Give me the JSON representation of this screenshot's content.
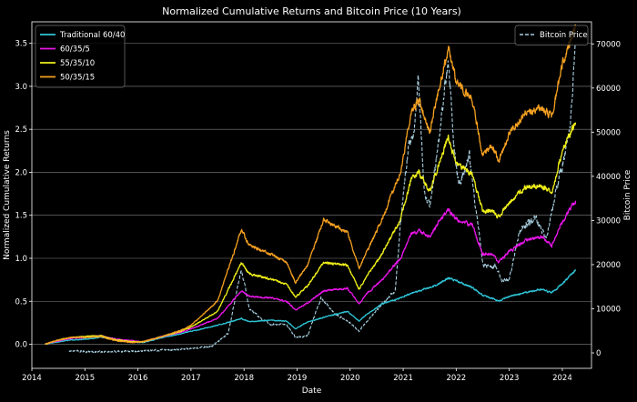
{
  "chart_data": {
    "type": "line",
    "title": "Normalized Cumulative Returns and Bitcoin Price (10 Years)",
    "xlabel": "Date",
    "ylabel_left": "Normalized Cumulative Returns",
    "ylabel_right": "Bitcoin Price",
    "xlim": [
      2014.0,
      2024.55
    ],
    "ylim_left": [
      -0.28,
      3.75
    ],
    "ylim_right": [
      -3500,
      75000
    ],
    "x_ticks": [
      "2014",
      "2015",
      "2016",
      "2017",
      "2018",
      "2019",
      "2020",
      "2021",
      "2022",
      "2023",
      "2024"
    ],
    "y_ticks_left": [
      "0.0",
      "0.5",
      "1.0",
      "1.5",
      "2.0",
      "2.5",
      "3.0",
      "3.5"
    ],
    "y_ticks_right": [
      "0",
      "10000",
      "20000",
      "30000",
      "40000",
      "50000",
      "60000",
      "70000"
    ],
    "grid": "horizontal",
    "legend_left_position": "top-left",
    "legend_right_position": "top-right",
    "series": [
      {
        "name": "Traditional 60/40",
        "axis": "left",
        "color": "#2ec4d6",
        "points": [
          [
            2014.25,
            0.0
          ],
          [
            2014.5,
            0.03
          ],
          [
            2014.75,
            0.05
          ],
          [
            2015.0,
            0.06
          ],
          [
            2015.3,
            0.08
          ],
          [
            2015.6,
            0.05
          ],
          [
            2015.9,
            0.03
          ],
          [
            2016.1,
            0.02
          ],
          [
            2016.4,
            0.07
          ],
          [
            2016.8,
            0.12
          ],
          [
            2017.0,
            0.15
          ],
          [
            2017.5,
            0.22
          ],
          [
            2017.95,
            0.3
          ],
          [
            2018.1,
            0.26
          ],
          [
            2018.5,
            0.28
          ],
          [
            2018.8,
            0.27
          ],
          [
            2018.97,
            0.18
          ],
          [
            2019.2,
            0.26
          ],
          [
            2019.6,
            0.33
          ],
          [
            2019.95,
            0.38
          ],
          [
            2020.17,
            0.27
          ],
          [
            2020.3,
            0.34
          ],
          [
            2020.6,
            0.47
          ],
          [
            2020.95,
            0.54
          ],
          [
            2021.3,
            0.62
          ],
          [
            2021.6,
            0.68
          ],
          [
            2021.85,
            0.77
          ],
          [
            2022.0,
            0.74
          ],
          [
            2022.3,
            0.66
          ],
          [
            2022.5,
            0.57
          ],
          [
            2022.7,
            0.53
          ],
          [
            2022.8,
            0.5
          ],
          [
            2023.0,
            0.56
          ],
          [
            2023.3,
            0.6
          ],
          [
            2023.6,
            0.64
          ],
          [
            2023.8,
            0.6
          ],
          [
            2024.0,
            0.7
          ],
          [
            2024.25,
            0.87
          ]
        ]
      },
      {
        "name": "60/35/5",
        "axis": "left",
        "color": "#e815e8",
        "points": [
          [
            2014.25,
            0.0
          ],
          [
            2014.5,
            0.04
          ],
          [
            2014.75,
            0.07
          ],
          [
            2015.0,
            0.08
          ],
          [
            2015.3,
            0.1
          ],
          [
            2015.6,
            0.06
          ],
          [
            2015.9,
            0.04
          ],
          [
            2016.1,
            0.03
          ],
          [
            2016.4,
            0.08
          ],
          [
            2016.8,
            0.14
          ],
          [
            2017.0,
            0.18
          ],
          [
            2017.5,
            0.3
          ],
          [
            2017.95,
            0.62
          ],
          [
            2018.1,
            0.56
          ],
          [
            2018.5,
            0.54
          ],
          [
            2018.8,
            0.5
          ],
          [
            2018.97,
            0.4
          ],
          [
            2019.2,
            0.48
          ],
          [
            2019.5,
            0.62
          ],
          [
            2019.95,
            0.65
          ],
          [
            2020.17,
            0.47
          ],
          [
            2020.3,
            0.58
          ],
          [
            2020.6,
            0.75
          ],
          [
            2020.95,
            1.0
          ],
          [
            2021.15,
            1.28
          ],
          [
            2021.3,
            1.32
          ],
          [
            2021.5,
            1.25
          ],
          [
            2021.65,
            1.4
          ],
          [
            2021.85,
            1.57
          ],
          [
            2022.0,
            1.45
          ],
          [
            2022.3,
            1.38
          ],
          [
            2022.5,
            1.05
          ],
          [
            2022.7,
            1.05
          ],
          [
            2022.8,
            0.95
          ],
          [
            2023.0,
            1.08
          ],
          [
            2023.3,
            1.2
          ],
          [
            2023.6,
            1.25
          ],
          [
            2023.8,
            1.15
          ],
          [
            2024.0,
            1.42
          ],
          [
            2024.25,
            1.67
          ]
        ]
      },
      {
        "name": "55/35/10",
        "axis": "left",
        "color": "#f0f01a",
        "points": [
          [
            2014.25,
            0.0
          ],
          [
            2014.5,
            0.05
          ],
          [
            2014.75,
            0.08
          ],
          [
            2015.0,
            0.09
          ],
          [
            2015.3,
            0.1
          ],
          [
            2015.6,
            0.05
          ],
          [
            2015.9,
            0.03
          ],
          [
            2016.1,
            0.03
          ],
          [
            2016.4,
            0.08
          ],
          [
            2016.8,
            0.15
          ],
          [
            2017.0,
            0.2
          ],
          [
            2017.5,
            0.38
          ],
          [
            2017.95,
            0.95
          ],
          [
            2018.1,
            0.82
          ],
          [
            2018.5,
            0.76
          ],
          [
            2018.8,
            0.7
          ],
          [
            2018.97,
            0.55
          ],
          [
            2019.2,
            0.68
          ],
          [
            2019.5,
            0.95
          ],
          [
            2019.95,
            0.92
          ],
          [
            2020.17,
            0.64
          ],
          [
            2020.3,
            0.78
          ],
          [
            2020.6,
            1.05
          ],
          [
            2020.95,
            1.45
          ],
          [
            2021.15,
            1.92
          ],
          [
            2021.3,
            2.0
          ],
          [
            2021.5,
            1.78
          ],
          [
            2021.65,
            2.05
          ],
          [
            2021.85,
            2.4
          ],
          [
            2022.0,
            2.1
          ],
          [
            2022.3,
            1.98
          ],
          [
            2022.5,
            1.55
          ],
          [
            2022.7,
            1.55
          ],
          [
            2022.8,
            1.48
          ],
          [
            2023.0,
            1.65
          ],
          [
            2023.3,
            1.82
          ],
          [
            2023.6,
            1.85
          ],
          [
            2023.8,
            1.75
          ],
          [
            2024.0,
            2.25
          ],
          [
            2024.25,
            2.58
          ]
        ]
      },
      {
        "name": "50/35/15",
        "axis": "left",
        "color": "#f5a020",
        "points": [
          [
            2014.25,
            0.0
          ],
          [
            2014.5,
            0.05
          ],
          [
            2014.75,
            0.08
          ],
          [
            2015.0,
            0.08
          ],
          [
            2015.3,
            0.09
          ],
          [
            2015.6,
            0.04
          ],
          [
            2015.9,
            0.02
          ],
          [
            2016.1,
            0.03
          ],
          [
            2016.4,
            0.08
          ],
          [
            2016.8,
            0.16
          ],
          [
            2017.0,
            0.22
          ],
          [
            2017.5,
            0.5
          ],
          [
            2017.95,
            1.33
          ],
          [
            2018.1,
            1.15
          ],
          [
            2018.5,
            1.05
          ],
          [
            2018.8,
            0.95
          ],
          [
            2018.97,
            0.72
          ],
          [
            2019.2,
            0.92
          ],
          [
            2019.5,
            1.45
          ],
          [
            2019.95,
            1.3
          ],
          [
            2020.17,
            0.88
          ],
          [
            2020.3,
            1.05
          ],
          [
            2020.6,
            1.45
          ],
          [
            2020.95,
            2.0
          ],
          [
            2021.15,
            2.7
          ],
          [
            2021.3,
            2.85
          ],
          [
            2021.5,
            2.45
          ],
          [
            2021.65,
            2.9
          ],
          [
            2021.85,
            3.45
          ],
          [
            2022.0,
            3.05
          ],
          [
            2022.3,
            2.85
          ],
          [
            2022.5,
            2.2
          ],
          [
            2022.7,
            2.3
          ],
          [
            2022.8,
            2.12
          ],
          [
            2023.0,
            2.45
          ],
          [
            2023.3,
            2.7
          ],
          [
            2023.6,
            2.75
          ],
          [
            2023.8,
            2.65
          ],
          [
            2024.0,
            3.25
          ],
          [
            2024.25,
            3.72
          ]
        ]
      },
      {
        "name": "Bitcoin Price",
        "axis": "right",
        "color": "#a8d0e0",
        "dashed": true,
        "points": [
          [
            2014.7,
            500
          ],
          [
            2015.0,
            300
          ],
          [
            2015.5,
            250
          ],
          [
            2016.0,
            430
          ],
          [
            2016.5,
            650
          ],
          [
            2017.0,
            1000
          ],
          [
            2017.4,
            1500
          ],
          [
            2017.7,
            4500
          ],
          [
            2017.95,
            19000
          ],
          [
            2018.1,
            10000
          ],
          [
            2018.3,
            8000
          ],
          [
            2018.5,
            6500
          ],
          [
            2018.8,
            6400
          ],
          [
            2018.97,
            3500
          ],
          [
            2019.2,
            3900
          ],
          [
            2019.45,
            12500
          ],
          [
            2019.7,
            9000
          ],
          [
            2019.95,
            7200
          ],
          [
            2020.17,
            5000
          ],
          [
            2020.3,
            7000
          ],
          [
            2020.6,
            11000
          ],
          [
            2020.85,
            14000
          ],
          [
            2020.95,
            29000
          ],
          [
            2021.1,
            47000
          ],
          [
            2021.2,
            50000
          ],
          [
            2021.28,
            63000
          ],
          [
            2021.4,
            36000
          ],
          [
            2021.5,
            33000
          ],
          [
            2021.65,
            46000
          ],
          [
            2021.85,
            67000
          ],
          [
            2021.95,
            48000
          ],
          [
            2022.05,
            38000
          ],
          [
            2022.25,
            45000
          ],
          [
            2022.4,
            30000
          ],
          [
            2022.5,
            20000
          ],
          [
            2022.75,
            19500
          ],
          [
            2022.86,
            16500
          ],
          [
            2023.0,
            16500
          ],
          [
            2023.2,
            28000
          ],
          [
            2023.5,
            30500
          ],
          [
            2023.7,
            26000
          ],
          [
            2023.85,
            35000
          ],
          [
            2024.0,
            42500
          ],
          [
            2024.15,
            52000
          ],
          [
            2024.25,
            70000
          ]
        ]
      }
    ]
  }
}
